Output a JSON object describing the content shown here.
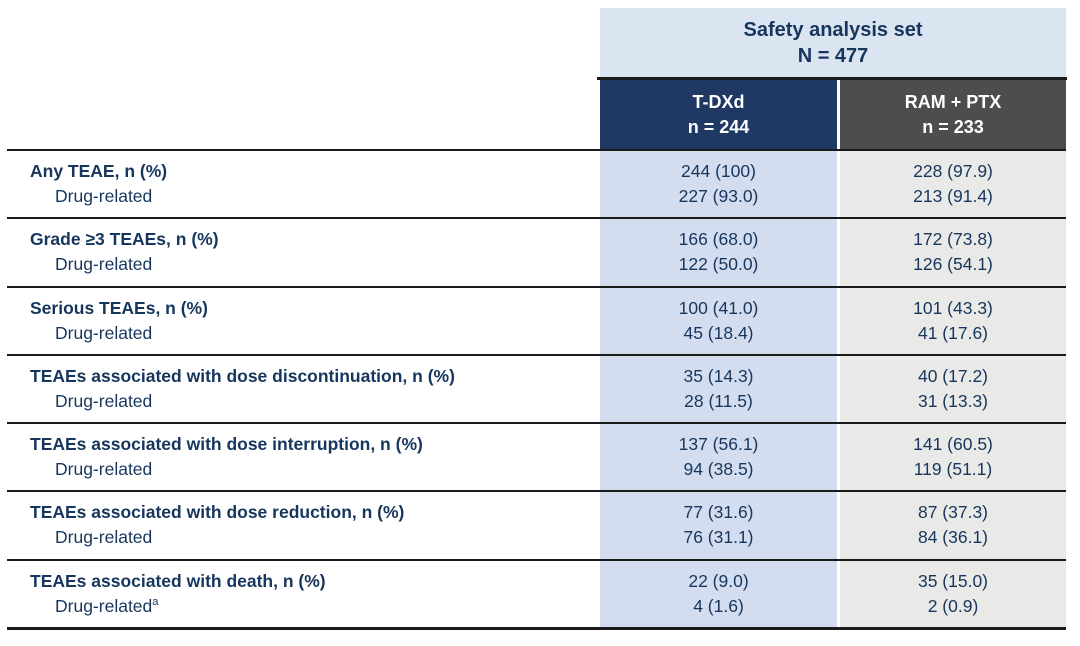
{
  "colors": {
    "spanning_header_bg": "#dbe5f2",
    "tdxd_header_bg": "#1f3864",
    "ram_ptx_header_bg": "#4d4d4d",
    "tdxd_column_bg": "#d3ddef",
    "ram_ptx_column_bg": "#e9e9e7",
    "text_navy": "#17365d",
    "header_text": "#ffffff",
    "rule": "#1a1a1a"
  },
  "table": {
    "spanning_header": {
      "title": "Safety analysis set",
      "subtitle": "N = 477"
    },
    "columns": [
      {
        "name": "T-DXd",
        "n": "n = 244"
      },
      {
        "name": "RAM + PTX",
        "n": "n = 233"
      }
    ],
    "rows": [
      {
        "label": "Any TEAE, n (%)",
        "sublabel": "Drug-related",
        "sublabel_superscript": "",
        "tdxd": "244 (100)",
        "tdxd_sub": "227 (93.0)",
        "ram": "228 (97.9)",
        "ram_sub": "213 (91.4)"
      },
      {
        "label": "Grade ≥3 TEAEs, n (%)",
        "sublabel": "Drug-related",
        "sublabel_superscript": "",
        "tdxd": "166 (68.0)",
        "tdxd_sub": "122 (50.0)",
        "ram": "172 (73.8)",
        "ram_sub": "126 (54.1)"
      },
      {
        "label": "Serious TEAEs, n (%)",
        "sublabel": "Drug-related",
        "sublabel_superscript": "",
        "tdxd": "100 (41.0)",
        "tdxd_sub": "45 (18.4)",
        "ram": "101 (43.3)",
        "ram_sub": "41 (17.6)"
      },
      {
        "label": "TEAEs associated with dose discontinuation, n (%)",
        "sublabel": "Drug-related",
        "sublabel_superscript": "",
        "tdxd": "35 (14.3)",
        "tdxd_sub": "28 (11.5)",
        "ram": "40 (17.2)",
        "ram_sub": "31 (13.3)"
      },
      {
        "label": "TEAEs associated with dose interruption, n (%)",
        "sublabel": "Drug-related",
        "sublabel_superscript": "",
        "tdxd": "137 (56.1)",
        "tdxd_sub": "94 (38.5)",
        "ram": "141 (60.5)",
        "ram_sub": "119 (51.1)"
      },
      {
        "label": "TEAEs associated with dose reduction, n (%)",
        "sublabel": "Drug-related",
        "sublabel_superscript": "",
        "tdxd": "77 (31.6)",
        "tdxd_sub": "76 (31.1)",
        "ram": "87 (37.3)",
        "ram_sub": "84 (36.1)"
      },
      {
        "label": "TEAEs associated with death, n (%)",
        "sublabel": "Drug-related",
        "sublabel_superscript": "a",
        "tdxd": "22 (9.0)",
        "tdxd_sub": "4 (1.6)",
        "ram": "35 (15.0)",
        "ram_sub": "2 (0.9)"
      }
    ]
  }
}
